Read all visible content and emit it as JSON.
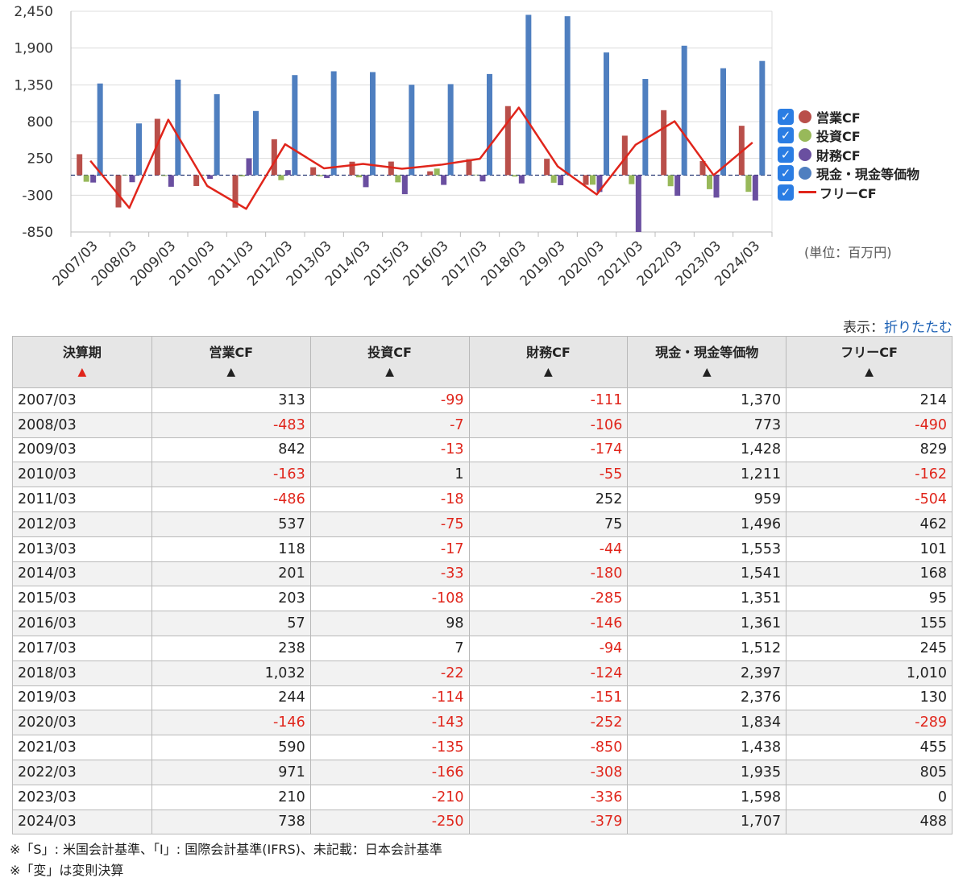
{
  "chart_data": {
    "type": "bar",
    "categories": [
      "2007/03",
      "2008/03",
      "2009/03",
      "2010/03",
      "2011/03",
      "2012/03",
      "2013/03",
      "2014/03",
      "2015/03",
      "2016/03",
      "2017/03",
      "2018/03",
      "2019/03",
      "2020/03",
      "2021/03",
      "2022/03",
      "2023/03",
      "2024/03"
    ],
    "series": [
      {
        "name": "営業CF",
        "type": "bar",
        "color": "#b94f4a",
        "values": [
          313,
          -483,
          842,
          -163,
          -486,
          537,
          118,
          201,
          203,
          57,
          238,
          1032,
          244,
          -146,
          590,
          971,
          210,
          738
        ]
      },
      {
        "name": "投資CF",
        "type": "bar",
        "color": "#98b95a",
        "values": [
          -99,
          -7,
          -13,
          1,
          -18,
          -75,
          -17,
          -33,
          -108,
          98,
          7,
          -22,
          -114,
          -143,
          -135,
          -166,
          -210,
          -250
        ]
      },
      {
        "name": "財務CF",
        "type": "bar",
        "color": "#6a4fa0",
        "values": [
          -111,
          -106,
          -174,
          -55,
          252,
          75,
          -44,
          -180,
          -285,
          -146,
          -94,
          -124,
          -151,
          -252,
          -850,
          -308,
          -336,
          -379
        ]
      },
      {
        "name": "現金・現金等価物",
        "type": "bar",
        "color": "#4f7fc0",
        "values": [
          1370,
          773,
          1428,
          1211,
          959,
          1496,
          1553,
          1541,
          1351,
          1361,
          1512,
          2397,
          2376,
          1834,
          1438,
          1935,
          1598,
          1707
        ]
      },
      {
        "name": "フリーCF",
        "type": "line",
        "color": "#e0251b",
        "values": [
          214,
          -490,
          829,
          -162,
          -504,
          462,
          101,
          168,
          95,
          155,
          245,
          1010,
          130,
          -289,
          455,
          805,
          0,
          488
        ]
      }
    ],
    "yticks": [
      "2,450",
      "1,900",
      "1,350",
      "800",
      "250",
      "-300",
      "-850"
    ],
    "ylim": [
      -850,
      2450
    ],
    "unit_label": "(単位：百万円)",
    "legend_position": "right"
  },
  "table": {
    "toggle_prefix": "表示：",
    "toggle_link": "折りたたむ",
    "headers": [
      "決算期",
      "営業CF",
      "投資CF",
      "財務CF",
      "現金・現金等価物",
      "フリーCF"
    ],
    "sort_symbol": "▲",
    "rows": [
      [
        "2007/03",
        "313",
        "-99",
        "-111",
        "1,370",
        "214"
      ],
      [
        "2008/03",
        "-483",
        "-7",
        "-106",
        "773",
        "-490"
      ],
      [
        "2009/03",
        "842",
        "-13",
        "-174",
        "1,428",
        "829"
      ],
      [
        "2010/03",
        "-163",
        "1",
        "-55",
        "1,211",
        "-162"
      ],
      [
        "2011/03",
        "-486",
        "-18",
        "252",
        "959",
        "-504"
      ],
      [
        "2012/03",
        "537",
        "-75",
        "75",
        "1,496",
        "462"
      ],
      [
        "2013/03",
        "118",
        "-17",
        "-44",
        "1,553",
        "101"
      ],
      [
        "2014/03",
        "201",
        "-33",
        "-180",
        "1,541",
        "168"
      ],
      [
        "2015/03",
        "203",
        "-108",
        "-285",
        "1,351",
        "95"
      ],
      [
        "2016/03",
        "57",
        "98",
        "-146",
        "1,361",
        "155"
      ],
      [
        "2017/03",
        "238",
        "7",
        "-94",
        "1,512",
        "245"
      ],
      [
        "2018/03",
        "1,032",
        "-22",
        "-124",
        "2,397",
        "1,010"
      ],
      [
        "2019/03",
        "244",
        "-114",
        "-151",
        "2,376",
        "130"
      ],
      [
        "2020/03",
        "-146",
        "-143",
        "-252",
        "1,834",
        "-289"
      ],
      [
        "2021/03",
        "590",
        "-135",
        "-850",
        "1,438",
        "455"
      ],
      [
        "2022/03",
        "971",
        "-166",
        "-308",
        "1,935",
        "805"
      ],
      [
        "2023/03",
        "210",
        "-210",
        "-336",
        "1,598",
        "0"
      ],
      [
        "2024/03",
        "738",
        "-250",
        "-379",
        "1,707",
        "488"
      ]
    ]
  },
  "notes": [
    "※「S」: 米国会計基準、「I」: 国際会計基準(IFRS)、未記載：日本会計基準",
    "※「変」は変則決算"
  ],
  "checkbox_glyph": "✓",
  "icons": {
    "checkbox": "checkbox-checked-icon",
    "sort": "sort-ascending-icon"
  }
}
